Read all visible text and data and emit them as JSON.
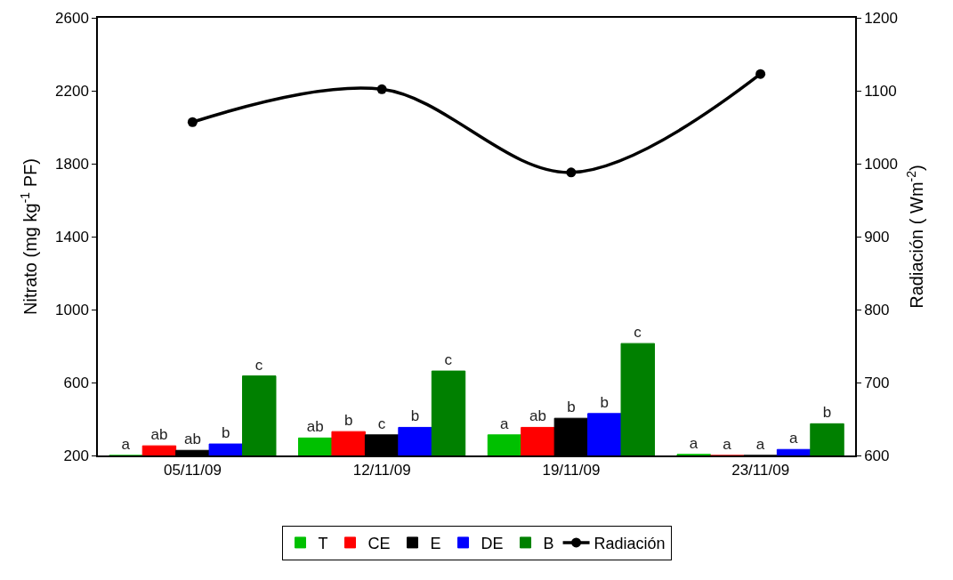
{
  "chart_data": {
    "type": "bar",
    "ylabel": "Nitrato (mg kg$^{-1}$ PF)",
    "y2label": "Radiación ( Wm$^{-2}$)",
    "categories": [
      "05/11/09",
      "12/11/09",
      "19/11/09",
      "23/11/09"
    ],
    "series": [
      {
        "name": "T",
        "color": "#00c000",
        "values": [
          200,
          296,
          313,
          206
        ],
        "value_labels": [
          "a",
          "ab",
          "a",
          "a"
        ]
      },
      {
        "name": "CE",
        "color": "#ff0000",
        "values": [
          253,
          331,
          354,
          200
        ],
        "value_labels": [
          "ab",
          "b",
          "ab",
          "a"
        ]
      },
      {
        "name": "E",
        "color": "#000000",
        "values": [
          228,
          313,
          404,
          200
        ],
        "value_labels": [
          "ab",
          "c",
          "b",
          "a"
        ]
      },
      {
        "name": "DE",
        "color": "#0000ff",
        "values": [
          263,
          354,
          430,
          233
        ],
        "value_labels": [
          "b",
          "b",
          "b",
          "a"
        ]
      },
      {
        "name": "B",
        "color": "#008000",
        "values": [
          636,
          663,
          814,
          374
        ],
        "value_labels": [
          "c",
          "c",
          "c",
          "b"
        ]
      },
      {
        "name": "Radiación",
        "type": "line",
        "axis": "y2",
        "color": "#000000",
        "marker": "circle",
        "values": [
          1057,
          1102,
          988,
          1123
        ]
      }
    ],
    "ylim": [
      200,
      2600
    ],
    "yticks": [
      200,
      600,
      1000,
      1400,
      1800,
      2200,
      2600
    ],
    "y2lim": [
      600,
      1200
    ],
    "y2ticks": [
      600,
      700,
      800,
      900,
      1000,
      1100,
      1200
    ],
    "legend": "bottom"
  }
}
